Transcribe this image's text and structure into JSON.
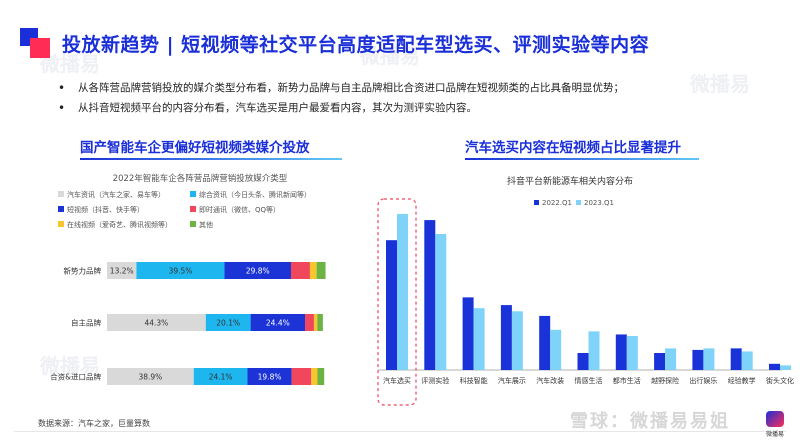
{
  "header": {
    "title": "投放新趋势 | 短视频等社交平台高度适配车型选买、评测实验等内容"
  },
  "bullets": [
    "从各阵营品牌营销投放的媒介类型分布看，新势力品牌与自主品牌相比合资进口品牌在短视频类的占比具备明显优势；",
    "从抖音短视频平台的内容分布看，汽车选买是用户最爱看内容，其次为测评实验内容。"
  ],
  "left_section": {
    "heading": "国产智能车企更偏好短视频类媒介投放"
  },
  "right_section": {
    "heading": "汽车选买内容在短视频占比显著提升"
  },
  "footer": {
    "source": "数据来源：汽车之家，巨量算数",
    "brand": "雪球：微播易易姐",
    "logo_text": "微播易",
    "watermarks": [
      "微播易",
      "微播易",
      "微播易",
      "微播易"
    ]
  },
  "colors": {
    "title": "#1a2fd8",
    "accent_red": "#ff2d55"
  },
  "chart_data": [
    {
      "type": "bar",
      "orientation": "horizontal",
      "stacked": true,
      "title": "2022年智能车企各阵营品牌营销投放媒介类型",
      "categories": [
        "新势力品牌",
        "自主品牌",
        "合资&进口品牌"
      ],
      "series": [
        {
          "name": "汽车资讯（汽车之家、易车等）",
          "color": "#d9d9d9",
          "values": [
            13.2,
            44.3,
            38.9
          ],
          "labels": [
            "13.2%",
            "44.3%",
            "38.9%"
          ]
        },
        {
          "name": "综合资讯（今日头条、腾讯新闻等）",
          "color": "#1eb6ef",
          "values": [
            39.5,
            20.1,
            24.1
          ],
          "labels": [
            "39.5%",
            "20.1%",
            "24.1%"
          ]
        },
        {
          "name": "短视频（抖音、快手等）",
          "color": "#1c33d6",
          "values": [
            29.8,
            24.4,
            19.8
          ],
          "labels": [
            "29.8%",
            "24.4%",
            "19.8%"
          ]
        },
        {
          "name": "即时通讯（微信、QQ等）",
          "color": "#f0475d",
          "values": [
            8.5,
            4.0,
            8.8
          ],
          "labels": [
            "",
            "",
            ""
          ]
        },
        {
          "name": "在线视频（爱奇艺、腾讯视频等）",
          "color": "#f7c52d",
          "values": [
            3.0,
            1.5,
            2.8
          ],
          "labels": [
            "",
            "",
            ""
          ]
        },
        {
          "name": "其他",
          "color": "#6bb345",
          "values": [
            4.0,
            2.5,
            3.0
          ],
          "labels": [
            "",
            "",
            ""
          ]
        }
      ],
      "legend_placement": "top",
      "xlim": [
        0,
        100
      ]
    },
    {
      "type": "bar",
      "title": "抖音平台新能源车相关内容分布",
      "categories": [
        "汽车选买",
        "评测实验",
        "科技智能",
        "汽车展示",
        "汽车改装",
        "情感生活",
        "都市生活",
        "越野探险",
        "出行娱乐",
        "经验教学",
        "街头文化"
      ],
      "series": [
        {
          "name": "2022.Q1",
          "color": "#1a33d8",
          "values": [
            84,
            97,
            47,
            42,
            35,
            11,
            23,
            11,
            13,
            14,
            4
          ]
        },
        {
          "name": "2023.Q1",
          "color": "#7fd3f9",
          "values": [
            101,
            88,
            40,
            38,
            26,
            25,
            22,
            14,
            14,
            12,
            3
          ]
        }
      ],
      "highlight_category": "汽车选买",
      "legend_placement": "top-center",
      "ylim": [
        0,
        110
      ],
      "grid": false
    }
  ]
}
